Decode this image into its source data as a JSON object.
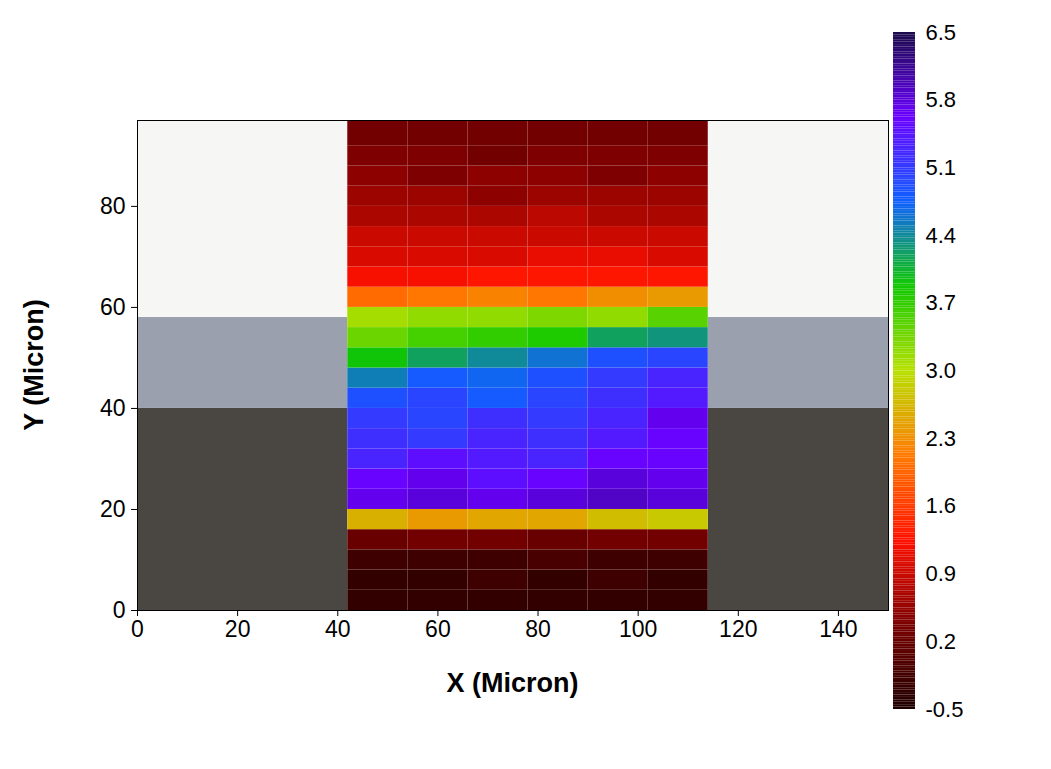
{
  "chart_data": {
    "type": "heatmap",
    "xlabel": "X (Micron)",
    "ylabel": "Y (Micron)",
    "xlim": [
      0,
      150
    ],
    "xticks": [
      0,
      20,
      40,
      60,
      80,
      100,
      120,
      140
    ],
    "ylim": [
      0,
      97
    ],
    "yticks": [
      0,
      20,
      40,
      60,
      80
    ],
    "x_edges": [
      42,
      54,
      66,
      78,
      90,
      102,
      114
    ],
    "y_edges": [
      0,
      4,
      8,
      12,
      16,
      20,
      24,
      28,
      32,
      36,
      40,
      44,
      48,
      52,
      56,
      60,
      64,
      68,
      72,
      76,
      80,
      84,
      88,
      92,
      97
    ],
    "values": [
      [
        -0.3,
        -0.3,
        -0.3,
        -0.3,
        -0.3,
        -0.3
      ],
      [
        -0.3,
        -0.3,
        -0.2,
        -0.3,
        -0.2,
        -0.3
      ],
      [
        -0.2,
        -0.2,
        -0.2,
        -0.1,
        -0.2,
        -0.2
      ],
      [
        0.2,
        0.3,
        0.3,
        0.2,
        0.3,
        0.3
      ],
      [
        2.6,
        2.4,
        2.5,
        2.5,
        2.7,
        2.8
      ],
      [
        5.7,
        5.8,
        5.7,
        5.8,
        5.9,
        5.8
      ],
      [
        5.6,
        5.7,
        5.5,
        5.6,
        5.8,
        5.7
      ],
      [
        5.3,
        5.5,
        5.4,
        5.3,
        5.6,
        5.6
      ],
      [
        5.2,
        5.1,
        5.3,
        5.2,
        5.4,
        5.6
      ],
      [
        5.1,
        5.0,
        5.2,
        5.1,
        5.3,
        5.7
      ],
      [
        4.9,
        5.0,
        4.8,
        5.0,
        5.2,
        5.4
      ],
      [
        4.5,
        4.8,
        4.7,
        4.9,
        5.1,
        5.3
      ],
      [
        3.9,
        4.2,
        4.4,
        4.6,
        4.9,
        5.0
      ],
      [
        3.4,
        3.6,
        3.7,
        3.8,
        4.2,
        4.3
      ],
      [
        3.1,
        3.2,
        3.2,
        3.3,
        3.2,
        3.5
      ],
      [
        2.0,
        2.1,
        2.2,
        2.1,
        2.3,
        2.4
      ],
      [
        1.2,
        1.2,
        1.3,
        1.3,
        1.3,
        1.3
      ],
      [
        1.0,
        1.0,
        1.0,
        1.1,
        1.1,
        1.0
      ],
      [
        0.9,
        0.9,
        0.9,
        0.9,
        0.9,
        0.9
      ],
      [
        0.7,
        0.7,
        0.7,
        0.8,
        0.7,
        0.7
      ],
      [
        0.6,
        0.6,
        0.5,
        0.6,
        0.6,
        0.6
      ],
      [
        0.5,
        0.4,
        0.5,
        0.5,
        0.4,
        0.5
      ],
      [
        0.4,
        0.4,
        0.3,
        0.4,
        0.4,
        0.4
      ],
      [
        0.3,
        0.3,
        0.3,
        0.3,
        0.3,
        0.3
      ]
    ],
    "colorbar": {
      "range": [
        -0.5,
        6.5
      ],
      "ticks": [
        -0.5,
        0.2,
        0.9,
        1.6,
        2.3,
        {
          "value": 3,
          "label": "3.0"
        },
        3.7,
        4.4,
        5.1,
        5.8,
        6.5
      ]
    }
  }
}
